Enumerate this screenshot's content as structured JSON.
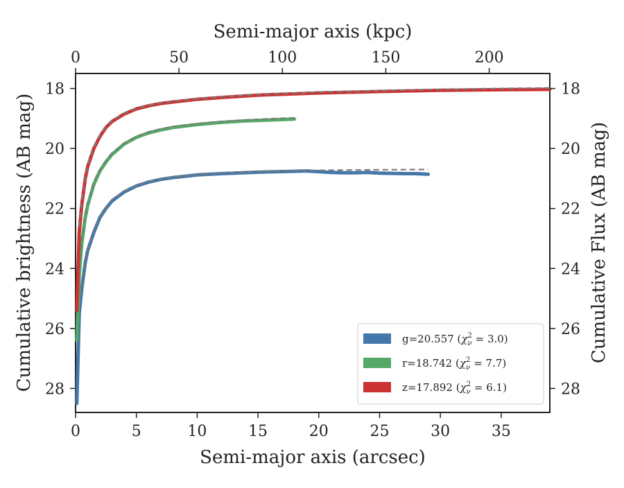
{
  "chart_data": {
    "type": "line",
    "xlabel": "Semi-major axis (arcsec)",
    "ylabel": "Cumulative brightness (AB mag)",
    "x2label": "Semi-major axis (kpc)",
    "y2label": "Cumulative Flux (AB mag)",
    "xlim": [
      0,
      39
    ],
    "ylim": [
      28.8,
      17.5
    ],
    "x2lim": [
      0,
      229.3
    ],
    "xticks": [
      "0",
      "5",
      "10",
      "15",
      "20",
      "25",
      "30",
      "35"
    ],
    "xtick_values": [
      0,
      5,
      10,
      15,
      20,
      25,
      30,
      35
    ],
    "x2ticks": [
      "0",
      "50",
      "100",
      "150",
      "200"
    ],
    "x2tick_values": [
      0,
      50,
      100,
      150,
      200
    ],
    "yticks": [
      "18",
      "20",
      "22",
      "24",
      "26",
      "28"
    ],
    "ytick_values": [
      18,
      20,
      22,
      24,
      26,
      28
    ],
    "y_inverted": true,
    "grid": false,
    "legend_position": "lower-right",
    "series": [
      {
        "name": "g=20.557 ($\\chi^2_\\nu = 3.0$)",
        "label_main": "g=20.557 (",
        "label_chi": "χ",
        "label_sub": "ν",
        "label_sup": "2",
        "label_tail": " = 3.0)",
        "color": "#4477aa",
        "x": [
          0.1,
          0.3,
          0.5,
          0.8,
          1.0,
          1.5,
          2.0,
          2.5,
          3.0,
          4.0,
          5.0,
          6.0,
          7.0,
          8.0,
          10.0,
          12.0,
          15.0,
          18.0,
          19.0,
          21.0,
          22.0,
          23.0,
          24.0,
          25.0,
          26.0,
          27.0,
          28.0,
          29.0
        ],
        "y": [
          28.5,
          25.5,
          24.7,
          23.8,
          23.4,
          22.8,
          22.3,
          22.0,
          21.75,
          21.45,
          21.25,
          21.12,
          21.03,
          20.97,
          20.88,
          20.84,
          20.79,
          20.76,
          20.75,
          20.8,
          20.81,
          20.81,
          20.8,
          20.82,
          20.83,
          20.84,
          20.84,
          20.86
        ],
        "model_x": [
          0.3,
          0.5,
          0.8,
          1.0,
          1.5,
          2.0,
          2.5,
          3.0,
          4.0,
          5.0,
          6.0,
          7.0,
          8.0,
          10.0,
          12.0,
          15.0,
          18.0,
          20.0,
          22.0,
          25.0,
          29.0
        ],
        "model_y": [
          25.2,
          24.5,
          23.7,
          23.35,
          22.7,
          22.25,
          21.95,
          21.7,
          21.42,
          21.23,
          21.1,
          21.01,
          20.95,
          20.87,
          20.82,
          20.77,
          20.74,
          20.73,
          20.72,
          20.71,
          20.7
        ]
      },
      {
        "name": "r=18.742 ($\\chi^2_\\nu = 7.7$)",
        "label_main": "r=18.742 (",
        "label_chi": "χ",
        "label_sub": "ν",
        "label_sup": "2",
        "label_tail": " = 7.7)",
        "color": "#55a868",
        "x": [
          0.1,
          0.3,
          0.5,
          0.8,
          1.0,
          1.5,
          2.0,
          2.5,
          3.0,
          4.0,
          5.0,
          6.0,
          7.0,
          8.0,
          10.0,
          12.0,
          14.0,
          16.0,
          18.0
        ],
        "y": [
          26.4,
          24.2,
          23.2,
          22.3,
          21.9,
          21.2,
          20.75,
          20.45,
          20.2,
          19.85,
          19.63,
          19.48,
          19.38,
          19.3,
          19.2,
          19.13,
          19.08,
          19.05,
          19.02
        ],
        "model_x": [
          0.3,
          0.5,
          0.8,
          1.0,
          1.5,
          2.0,
          2.5,
          3.0,
          4.0,
          5.0,
          6.0,
          7.0,
          8.0,
          10.0,
          12.0,
          14.0,
          16.0,
          18.0
        ],
        "model_y": [
          24.0,
          23.0,
          22.2,
          21.8,
          21.1,
          20.7,
          20.4,
          20.15,
          19.82,
          19.6,
          19.45,
          19.35,
          19.27,
          19.17,
          19.1,
          19.05,
          19.01,
          18.98
        ]
      },
      {
        "name": "z=17.892 ($\\chi^2_\\nu = 6.1$)",
        "label_main": "z=17.892 (",
        "label_chi": "χ",
        "label_sub": "ν",
        "label_sup": "2",
        "label_tail": " = 6.1)",
        "color": "#cc3333",
        "x": [
          0.1,
          0.3,
          0.5,
          0.8,
          1.0,
          1.5,
          2.0,
          2.5,
          3.0,
          4.0,
          5.0,
          6.0,
          7.0,
          8.0,
          10.0,
          12.0,
          15.0,
          20.0,
          25.0,
          30.0,
          35.0,
          39.0
        ],
        "y": [
          25.4,
          22.8,
          21.9,
          21.0,
          20.6,
          20.0,
          19.6,
          19.3,
          19.1,
          18.85,
          18.68,
          18.58,
          18.5,
          18.45,
          18.36,
          18.3,
          18.22,
          18.15,
          18.1,
          18.06,
          18.04,
          18.03
        ],
        "model_x": [
          0.3,
          0.5,
          0.8,
          1.0,
          1.5,
          2.0,
          2.5,
          3.0,
          4.0,
          5.0,
          6.0,
          7.0,
          8.0,
          10.0,
          12.0,
          15.0,
          20.0,
          25.0,
          30.0,
          35.0,
          39.0
        ],
        "model_y": [
          22.6,
          21.8,
          20.95,
          20.55,
          19.95,
          19.55,
          19.27,
          19.07,
          18.82,
          18.66,
          18.56,
          18.48,
          18.43,
          18.34,
          18.28,
          18.2,
          18.12,
          18.07,
          18.03,
          18.0,
          17.98
        ]
      }
    ]
  }
}
